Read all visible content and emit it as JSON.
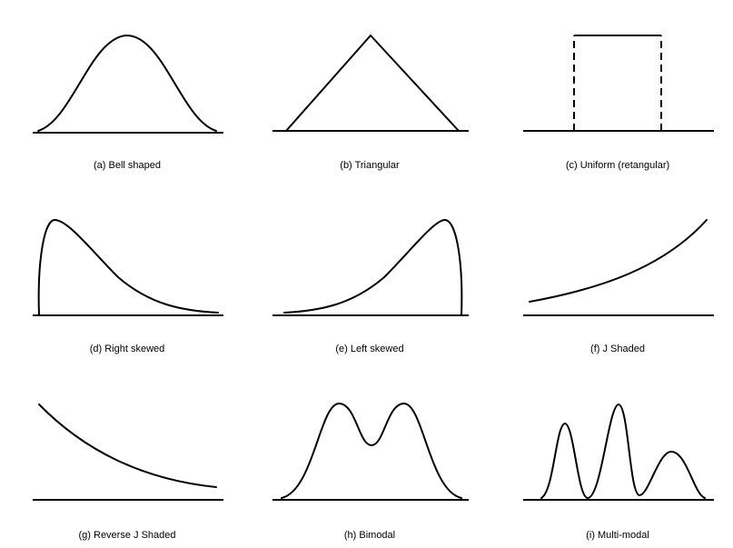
{
  "panels": [
    {
      "id": "a",
      "caption": "(a) Bell shaped"
    },
    {
      "id": "b",
      "caption": "(b) Triangular"
    },
    {
      "id": "c",
      "caption": "(c) Uniform (retangular)"
    },
    {
      "id": "d",
      "caption": "(d) Right skewed"
    },
    {
      "id": "e",
      "caption": "(e) Left skewed"
    },
    {
      "id": "f",
      "caption": "(f) J Shaded"
    },
    {
      "id": "g",
      "caption": "(g) Reverse J Shaded"
    },
    {
      "id": "h",
      "caption": "(h) Bimodal"
    },
    {
      "id": "i",
      "caption": "(i) Multi-modal"
    }
  ],
  "colors": {
    "stroke": "#000000",
    "background": "#ffffff"
  }
}
